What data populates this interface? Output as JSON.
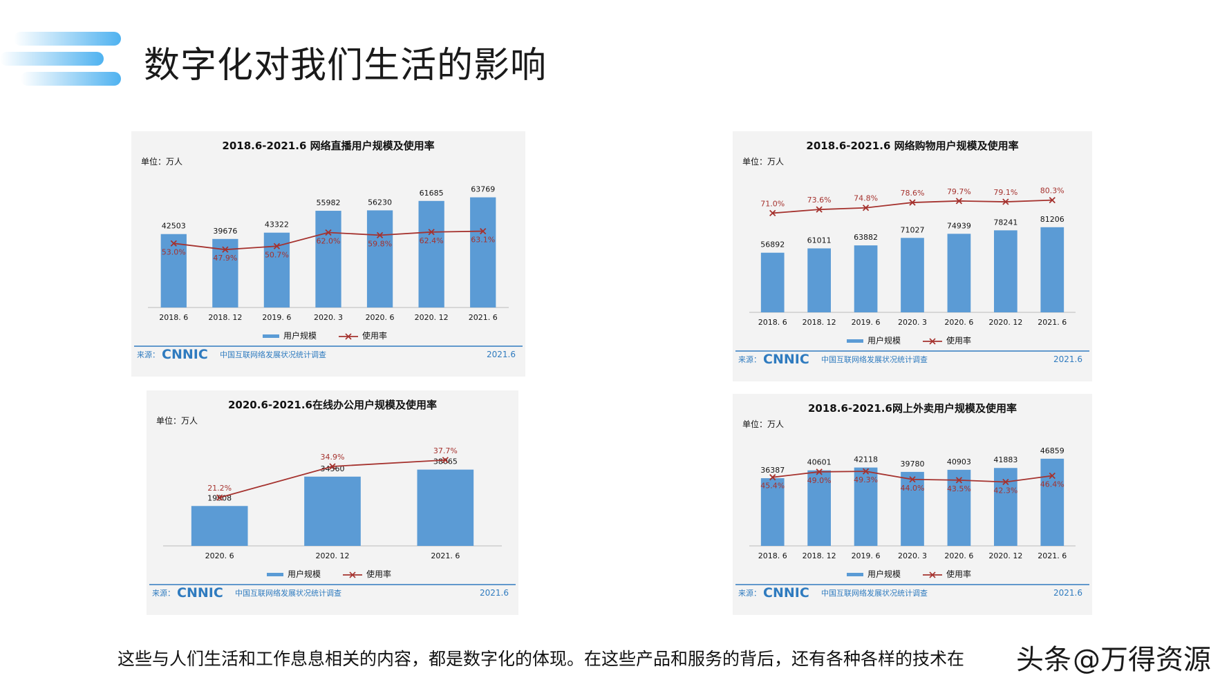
{
  "page": {
    "title": "数字化对我们生活的影响",
    "caption": "这些与人们生活和工作息息相关的内容，都是数字化的体现。在这些产品和服务的背后，还有各种各样的技术在",
    "watermark_left": "头条",
    "watermark_right": "@万得资源"
  },
  "colors": {
    "bar": "#5b9bd5",
    "line": "#a5322e",
    "accent": "#2f7bbf",
    "deco": "#4fb2f0"
  },
  "chart_data": [
    {
      "type": "bar",
      "title": "2018.6-2021.6 网络直播用户规模及使用率",
      "unit": "单位：万人",
      "categories": [
        "2018. 6",
        "2018. 12",
        "2019. 6",
        "2020. 3",
        "2020. 6",
        "2020. 12",
        "2021. 6"
      ],
      "series": [
        {
          "name": "用户规模",
          "kind": "bar",
          "values": [
            42503,
            39676,
            43322,
            55982,
            56230,
            61685,
            63769
          ]
        },
        {
          "name": "使用率",
          "kind": "line",
          "values": [
            53.0,
            47.9,
            50.7,
            62.0,
            59.8,
            62.4,
            63.1
          ],
          "labels": [
            "53.0%",
            "47.9%",
            "50.7%",
            "62.0%",
            "59.8%",
            "62.4%",
            "63.1%"
          ]
        }
      ],
      "ylim": [
        0,
        70000
      ],
      "rate_lim": [
        0,
        100
      ],
      "rate_label_inside": true,
      "source": "来源：",
      "source_logo": "CNNIC",
      "source_text": "中国互联网络发展状况统计调查",
      "date": "2021.6"
    },
    {
      "type": "bar",
      "title": "2018.6-2021.6 网络购物用户规模及使用率",
      "unit": "单位：万人",
      "categories": [
        "2018. 6",
        "2018. 12",
        "2019. 6",
        "2020. 3",
        "2020. 6",
        "2020. 12",
        "2021. 6"
      ],
      "series": [
        {
          "name": "用户规模",
          "kind": "bar",
          "values": [
            56892,
            61011,
            63882,
            71027,
            74939,
            78241,
            81206
          ]
        },
        {
          "name": "使用率",
          "kind": "line",
          "values": [
            71.0,
            73.6,
            74.8,
            78.6,
            79.7,
            79.1,
            80.3
          ],
          "labels": [
            "71.0%",
            "73.6%",
            "74.8%",
            "78.6%",
            "79.7%",
            "79.1%",
            "80.3%"
          ]
        }
      ],
      "ylim": [
        0,
        120000
      ],
      "rate_lim": [
        0,
        90
      ],
      "rate_label_inside": false,
      "source": "来源：",
      "source_logo": "CNNIC",
      "source_text": "中国互联网络发展状况统计调查",
      "date": "2021.6"
    },
    {
      "type": "bar",
      "title": "2020.6-2021.6在线办公用户规模及使用率",
      "unit": "单位：万人",
      "categories": [
        "2020. 6",
        "2020. 12",
        "2021. 6"
      ],
      "series": [
        {
          "name": "用户规模",
          "kind": "bar",
          "values": [
            19908,
            34560,
            38065
          ]
        },
        {
          "name": "使用率",
          "kind": "line",
          "values": [
            21.2,
            34.9,
            37.7
          ],
          "labels": [
            "21.2%",
            "34.9%",
            "37.7%"
          ]
        }
      ],
      "ylim": [
        0,
        50000
      ],
      "rate_lim": [
        0,
        44
      ],
      "rate_label_inside": false,
      "source": "来源：",
      "source_logo": "CNNIC",
      "source_text": "中国互联网络发展状况统计调查",
      "date": "2021.6"
    },
    {
      "type": "bar",
      "title": "2018.6-2021.6网上外卖用户规模及使用率",
      "unit": "单位：万人",
      "categories": [
        "2018. 6",
        "2018. 12",
        "2019. 6",
        "2020. 3",
        "2020. 6",
        "2020. 12",
        "2021. 6"
      ],
      "series": [
        {
          "name": "用户规模",
          "kind": "bar",
          "values": [
            36387,
            40601,
            42118,
            39780,
            40903,
            41883,
            46859
          ]
        },
        {
          "name": "使用率",
          "kind": "line",
          "values": [
            45.4,
            49.0,
            49.3,
            44.0,
            43.5,
            42.3,
            46.4
          ],
          "labels": [
            "45.4%",
            "49.0%",
            "49.3%",
            "44.0%",
            "43.5%",
            "42.3%",
            "46.4%"
          ]
        }
      ],
      "ylim": [
        0,
        52000
      ],
      "rate_lim": [
        0,
        64
      ],
      "rate_label_inside": true,
      "source": "来源：",
      "source_logo": "CNNIC",
      "source_text": "中国互联网络发展状况统计调查",
      "date": "2021.6"
    }
  ]
}
